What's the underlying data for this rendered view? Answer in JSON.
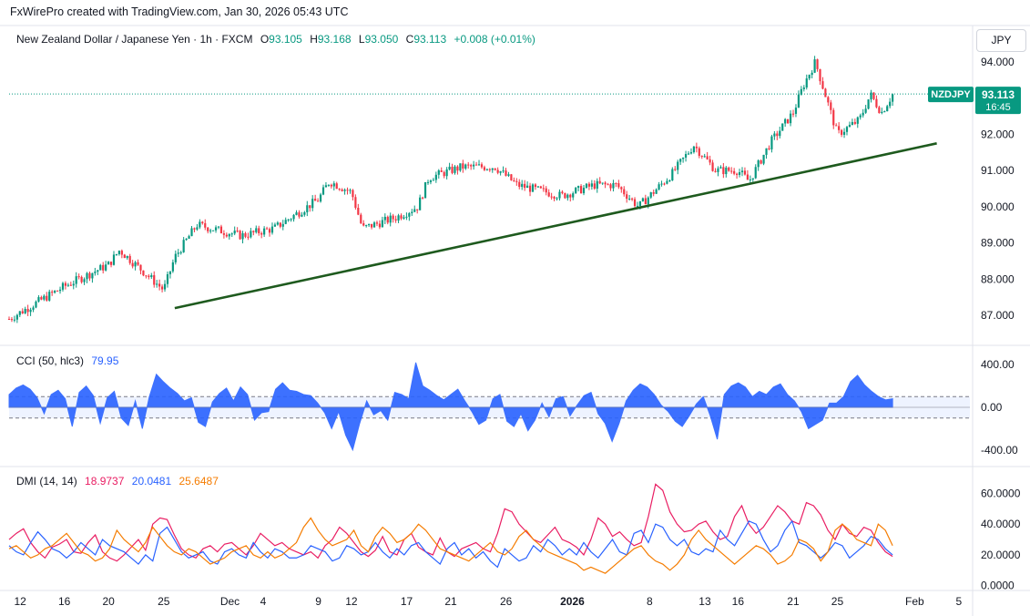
{
  "attribution": "FxWirePro created with TradingView.com, Jan 30, 2026 05:43 UTC",
  "symbol": {
    "title": "New Zealand Dollar / Japanese Yen · 1h · FXCM",
    "open_label": "O",
    "open": "93.105",
    "high_label": "H",
    "high": "93.168",
    "low_label": "L",
    "low": "93.050",
    "close_label": "C",
    "close": "93.113",
    "change": "+0.008 (+0.01%)"
  },
  "currency_unit": "JPY",
  "price_tag": {
    "ticker": "NZDJPY",
    "price": "93.113",
    "countdown": "16:45"
  },
  "colors": {
    "up": "#089981",
    "down": "#f23645",
    "trendline": "#1e5a1e",
    "cci": "#2962ff",
    "dmi_plus": "#e91e63",
    "dmi_minus": "#2962ff",
    "adx": "#f57c00",
    "axis_text": "#131722",
    "grid_border": "#e0e3eb"
  },
  "chart_data": [
    {
      "type": "candlestick",
      "title": "New Zealand Dollar / Japanese Yen · 1h · FXCM",
      "y_ticks": [
        "94.000",
        "92.000",
        "91.000",
        "90.000",
        "89.000",
        "88.000",
        "87.000"
      ],
      "ylim": [
        86.85,
        94.25
      ],
      "last_price": 93.113,
      "trend_segments": [
        {
          "x": "Nov 11",
          "y": 86.9
        },
        {
          "x": "Nov 16",
          "y": 87.8
        },
        {
          "x": "Nov 20",
          "y": 88.4
        },
        {
          "x": "Nov 21",
          "y": 88.8
        },
        {
          "x": "Nov 25",
          "y": 87.7
        },
        {
          "x": "Nov 26",
          "y": 88.6
        },
        {
          "x": "Nov 28",
          "y": 89.5
        },
        {
          "x": "Dec 2",
          "y": 89.2
        },
        {
          "x": "Dec 5",
          "y": 89.4
        },
        {
          "x": "Dec 9",
          "y": 90.2
        },
        {
          "x": "Dec 10",
          "y": 90.7
        },
        {
          "x": "Dec 12",
          "y": 90.4
        },
        {
          "x": "Dec 13",
          "y": 89.4
        },
        {
          "x": "Dec 16",
          "y": 89.7
        },
        {
          "x": "Dec 18",
          "y": 90.0
        },
        {
          "x": "Dec 19",
          "y": 90.8
        },
        {
          "x": "Dec 22",
          "y": 91.1
        },
        {
          "x": "Dec 25",
          "y": 91.1
        },
        {
          "x": "Dec 27",
          "y": 90.6
        },
        {
          "x": "Dec 31",
          "y": 90.3
        },
        {
          "x": "Jan 3",
          "y": 90.6
        },
        {
          "x": "Jan 5",
          "y": 90.6
        },
        {
          "x": "Jan 7",
          "y": 90.0
        },
        {
          "x": "Jan 10",
          "y": 90.9
        },
        {
          "x": "Jan 12",
          "y": 91.7
        },
        {
          "x": "Jan 14",
          "y": 91.0
        },
        {
          "x": "Jan 16",
          "y": 91.0
        },
        {
          "x": "Jan 17",
          "y": 90.7
        },
        {
          "x": "Jan 19",
          "y": 91.8
        },
        {
          "x": "Jan 21",
          "y": 92.6
        },
        {
          "x": "Jan 22",
          "y": 93.4
        },
        {
          "x": "Jan 23",
          "y": 94.0
        },
        {
          "x": "Jan 24",
          "y": 93.0
        },
        {
          "x": "Jan 25",
          "y": 92.0
        },
        {
          "x": "Jan 27",
          "y": 92.4
        },
        {
          "x": "Jan 28",
          "y": 93.1
        },
        {
          "x": "Jan 29",
          "y": 92.6
        },
        {
          "x": "Jan 30",
          "y": 93.1
        }
      ],
      "trendline": [
        {
          "x": "Nov 26",
          "y": 87.2
        },
        {
          "x": "Feb 3",
          "y": 91.75
        }
      ]
    },
    {
      "type": "area",
      "title": "CCI (50, hlc3)",
      "last_value": "79.95",
      "y_ticks": [
        "400.00",
        "0.00",
        "-400.00"
      ],
      "ylim": [
        -470,
        470
      ],
      "band": [
        100,
        -100
      ],
      "values": [
        120,
        180,
        210,
        170,
        90,
        -60,
        120,
        160,
        80,
        -180,
        140,
        200,
        110,
        -150,
        90,
        150,
        -100,
        -170,
        60,
        -200,
        100,
        310,
        240,
        180,
        130,
        60,
        90,
        -140,
        -180,
        50,
        130,
        180,
        60,
        190,
        120,
        -120,
        -50,
        -40,
        170,
        230,
        160,
        150,
        120,
        110,
        40,
        -50,
        -200,
        -40,
        -260,
        -400,
        -150,
        60,
        -70,
        -30,
        -120,
        140,
        120,
        80,
        420,
        200,
        160,
        110,
        70,
        120,
        170,
        60,
        -40,
        -160,
        -120,
        80,
        120,
        -130,
        -180,
        -60,
        -220,
        -120,
        40,
        -90,
        80,
        100,
        -80,
        20,
        110,
        140,
        -60,
        -150,
        -320,
        -150,
        60,
        160,
        220,
        190,
        120,
        20,
        -40,
        -130,
        -180,
        -80,
        30,
        100,
        -80,
        -300,
        120,
        200,
        230,
        190,
        100,
        150,
        120,
        190,
        220,
        120,
        60,
        -40,
        -200,
        -160,
        -120,
        40,
        40,
        100,
        240,
        300,
        210,
        150,
        100,
        70,
        80
      ]
    },
    {
      "type": "line",
      "title": "DMI (14, 14)",
      "legend_values": [
        "18.9737",
        "20.0481",
        "25.6487"
      ],
      "y_ticks": [
        "60.0000",
        "40.0000",
        "20.0000",
        "0.0000"
      ],
      "ylim": [
        -2,
        68
      ],
      "x_ticks": [
        "12",
        "16",
        "20",
        "25",
        "Dec",
        "4",
        "9",
        "12",
        "17",
        "21",
        "26",
        "2026",
        "8",
        "13",
        "16",
        "21",
        "25",
        "Feb",
        "5"
      ],
      "series": [
        {
          "values": [
            30,
            34,
            37,
            28,
            22,
            18,
            25,
            27,
            30,
            22,
            21,
            28,
            33,
            22,
            18,
            16,
            20,
            25,
            30,
            23,
            40,
            44,
            43,
            33,
            24,
            20,
            18,
            24,
            26,
            22,
            27,
            28,
            24,
            20,
            26,
            34,
            30,
            26,
            28,
            24,
            22,
            20,
            22,
            18,
            26,
            30,
            38,
            34,
            28,
            22,
            19,
            23,
            32,
            22,
            20,
            30,
            34,
            25,
            22,
            20,
            31,
            22,
            19,
            24,
            26,
            28,
            24,
            22,
            34,
            50,
            48,
            40,
            35,
            30,
            28,
            33,
            38,
            30,
            28,
            25,
            20,
            30,
            44,
            40,
            32,
            35,
            30,
            26,
            28,
            45,
            66,
            62,
            48,
            40,
            35,
            36,
            40,
            42,
            35,
            30,
            32,
            45,
            52,
            40,
            34,
            38,
            45,
            52,
            48,
            42,
            40,
            54,
            52,
            46,
            36,
            30,
            40,
            34,
            32,
            38,
            36,
            28,
            22,
            19
          ]
        },
        {
          "values": [
            26,
            22,
            20,
            28,
            35,
            30,
            24,
            22,
            18,
            22,
            28,
            24,
            20,
            30,
            26,
            24,
            22,
            18,
            14,
            20,
            16,
            34,
            38,
            30,
            22,
            18,
            20,
            22,
            16,
            14,
            22,
            24,
            20,
            18,
            28,
            22,
            18,
            24,
            22,
            18,
            18,
            20,
            26,
            24,
            22,
            16,
            18,
            26,
            24,
            20,
            22,
            28,
            22,
            18,
            24,
            20,
            26,
            28,
            22,
            18,
            14,
            24,
            28,
            20,
            24,
            18,
            22,
            16,
            12,
            24,
            20,
            16,
            18,
            26,
            22,
            30,
            26,
            20,
            24,
            20,
            28,
            22,
            18,
            24,
            30,
            22,
            20,
            34,
            36,
            28,
            40,
            38,
            30,
            26,
            30,
            22,
            20,
            24,
            22,
            36,
            30,
            26,
            34,
            42,
            40,
            30,
            22,
            26,
            36,
            42,
            28,
            26,
            22,
            18,
            22,
            28,
            26,
            18,
            22,
            26,
            32,
            30,
            24,
            20
          ]
        },
        {
          "values": [
            24,
            26,
            22,
            18,
            20,
            24,
            26,
            30,
            34,
            28,
            22,
            20,
            16,
            18,
            24,
            36,
            30,
            26,
            22,
            28,
            38,
            32,
            26,
            22,
            20,
            24,
            22,
            18,
            14,
            16,
            18,
            22,
            24,
            26,
            20,
            18,
            22,
            18,
            20,
            24,
            28,
            38,
            44,
            36,
            30,
            26,
            28,
            30,
            36,
            26,
            22,
            32,
            38,
            34,
            28,
            30,
            34,
            40,
            36,
            30,
            24,
            22,
            20,
            18,
            16,
            20,
            24,
            28,
            22,
            20,
            24,
            32,
            36,
            30,
            26,
            22,
            20,
            18,
            16,
            14,
            10,
            12,
            10,
            8,
            12,
            16,
            20,
            24,
            26,
            20,
            16,
            14,
            10,
            14,
            20,
            30,
            36,
            30,
            26,
            22,
            18,
            14,
            18,
            22,
            26,
            24,
            20,
            14,
            16,
            20,
            30,
            28,
            24,
            16,
            22,
            36,
            40,
            36,
            30,
            28,
            26,
            40,
            36,
            26
          ]
        }
      ]
    }
  ]
}
